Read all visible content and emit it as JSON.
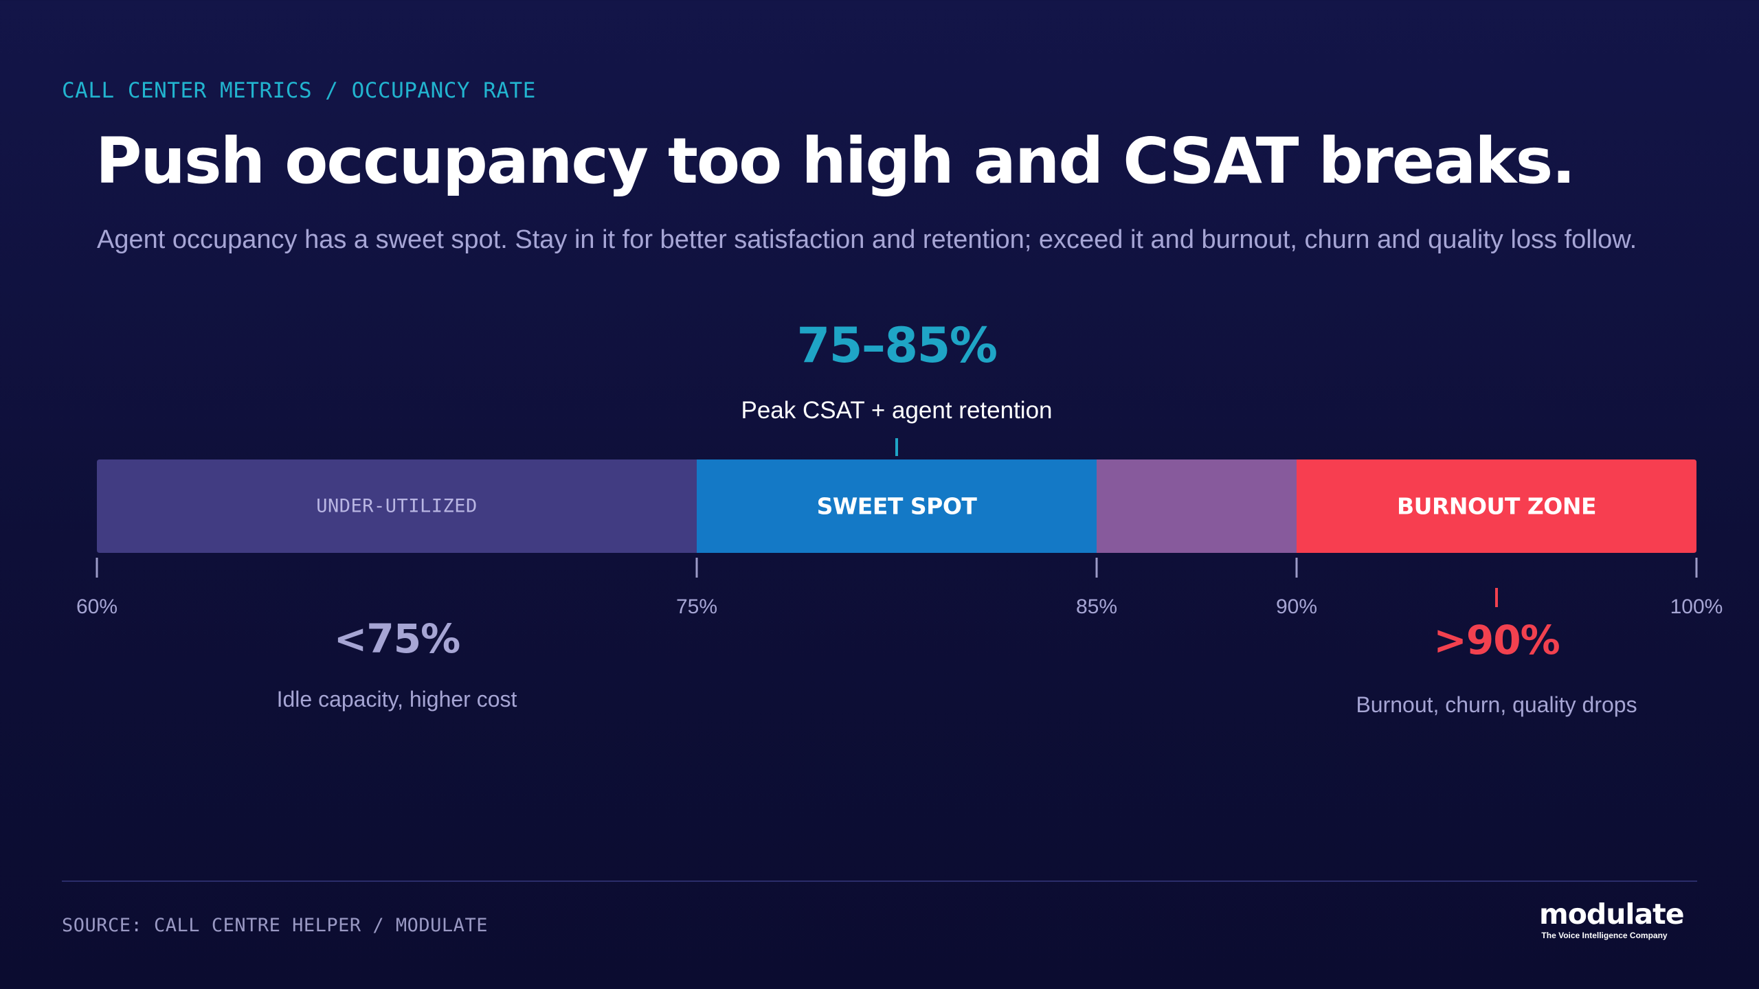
{
  "header": {
    "eyebrow": "CALL CENTER METRICS / OCCUPANCY RATE",
    "title": "Push occupancy too high and CSAT breaks.",
    "subtitle": "Agent occupancy has a sweet spot. Stay in it for better satisfaction and retention; exceed it and burnout, churn and quality loss follow."
  },
  "chart_data": {
    "type": "bar",
    "orientation": "horizontal-segmented-scale",
    "xlim": [
      60,
      100
    ],
    "ticks": [
      {
        "value": 60,
        "label": "60%"
      },
      {
        "value": 75,
        "label": "75%"
      },
      {
        "value": 85,
        "label": "85%"
      },
      {
        "value": 90,
        "label": "90%"
      },
      {
        "value": 100,
        "label": "100%"
      }
    ],
    "segments": [
      {
        "start": 60,
        "end": 75,
        "label": "UNDER-UTILIZED",
        "color": "#413c82",
        "label_color": "#b9b6e3",
        "label_style": "mono"
      },
      {
        "start": 75,
        "end": 85,
        "label": "SWEET SPOT",
        "color": "#1479c6",
        "label_color": "#ffffff",
        "label_style": "bold"
      },
      {
        "start": 85,
        "end": 90,
        "label": "",
        "color": "#875a9c",
        "label_color": "#ffffff",
        "label_style": "bold"
      },
      {
        "start": 90,
        "end": 100,
        "label": "BURNOUT ZONE",
        "color": "#f73e50",
        "label_color": "#ffffff",
        "label_style": "bold"
      }
    ],
    "callouts": [
      {
        "value": 80,
        "position": "above",
        "headline": "75–85%",
        "caption": "Peak CSAT + agent retention",
        "headline_color": "#1fa5c6",
        "caption_color": "#ffffff",
        "marker_color": "#1fa5c6"
      },
      {
        "value": 67.5,
        "position": "below",
        "headline": "<75%",
        "caption": "Idle capacity, higher cost",
        "headline_color": "#a6a5d4",
        "caption_color": "#a6a5d4",
        "marker_color": ""
      },
      {
        "value": 95,
        "position": "below",
        "headline": ">90%",
        "caption": "Burnout, churn, quality drops",
        "headline_color": "#f2414f",
        "caption_color": "#a6a5d4",
        "marker_color": "#f2414f"
      }
    ],
    "tick_color": "#9c9bc8",
    "tick_label_color": "#a6a5d4"
  },
  "footer": {
    "source": "SOURCE: CALL CENTRE HELPER / MODULATE",
    "logo_word": "modulate",
    "logo_tagline": "The Voice Intelligence Company"
  }
}
